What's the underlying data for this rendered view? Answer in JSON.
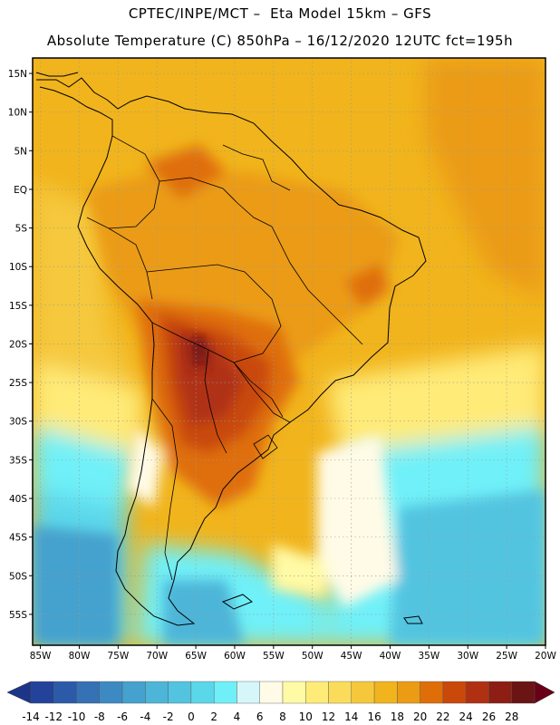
{
  "header": {
    "line1": "CPTEC/INPE/MCT –  Eta Model 15km – GFS",
    "line2": "Absolute Temperature (C) 850hPa – 16/12/2020 12UTC fct=195h"
  },
  "map": {
    "region": "South America",
    "lon_range": [
      -86,
      -20
    ],
    "lat_range": [
      -59,
      17
    ],
    "lon_labels": [
      {
        "lon": -85,
        "text": "85W"
      },
      {
        "lon": -80,
        "text": "80W"
      },
      {
        "lon": -75,
        "text": "75W"
      },
      {
        "lon": -70,
        "text": "70W"
      },
      {
        "lon": -65,
        "text": "65W"
      },
      {
        "lon": -60,
        "text": "60W"
      },
      {
        "lon": -55,
        "text": "55W"
      },
      {
        "lon": -50,
        "text": "50W"
      },
      {
        "lon": -45,
        "text": "45W"
      },
      {
        "lon": -40,
        "text": "40W"
      },
      {
        "lon": -35,
        "text": "35W"
      },
      {
        "lon": -30,
        "text": "30W"
      },
      {
        "lon": -25,
        "text": "25W"
      },
      {
        "lon": -20,
        "text": "20W"
      }
    ],
    "lat_labels": [
      {
        "lat": 15,
        "text": "15N"
      },
      {
        "lat": 10,
        "text": "10N"
      },
      {
        "lat": 5,
        "text": "5N"
      },
      {
        "lat": 0,
        "text": "EQ"
      },
      {
        "lat": -5,
        "text": "5S"
      },
      {
        "lat": -10,
        "text": "10S"
      },
      {
        "lat": -15,
        "text": "15S"
      },
      {
        "lat": -20,
        "text": "20S"
      },
      {
        "lat": -25,
        "text": "25S"
      },
      {
        "lat": -30,
        "text": "30S"
      },
      {
        "lat": -35,
        "text": "35S"
      },
      {
        "lat": -40,
        "text": "40S"
      },
      {
        "lat": -45,
        "text": "45S"
      },
      {
        "lat": -50,
        "text": "50S"
      },
      {
        "lat": -55,
        "text": "55S"
      }
    ],
    "grid": true
  },
  "colorbar": {
    "labels": [
      "-14",
      "-12",
      "-10",
      "-8",
      "-6",
      "-4",
      "-2",
      "0",
      "2",
      "4",
      "6",
      "8",
      "10",
      "12",
      "14",
      "16",
      "18",
      "20",
      "22",
      "24",
      "26",
      "28"
    ],
    "colors": [
      "#23439a",
      "#2b5aa8",
      "#3472b5",
      "#3d8ac2",
      "#45a1cd",
      "#4db5d8",
      "#52c4e0",
      "#5bd7ea",
      "#6ff0f8",
      "#d6f7fa",
      "#fffbe6",
      "#fffaa6",
      "#ffeb78",
      "#fbdc5a",
      "#f5c83c",
      "#f1b41c",
      "#eb9b14",
      "#df6e08",
      "#c9480a",
      "#b03012",
      "#8c1e14",
      "#6a1414"
    ],
    "low_color": "#1c3588",
    "high_color": "#6a0018"
  }
}
